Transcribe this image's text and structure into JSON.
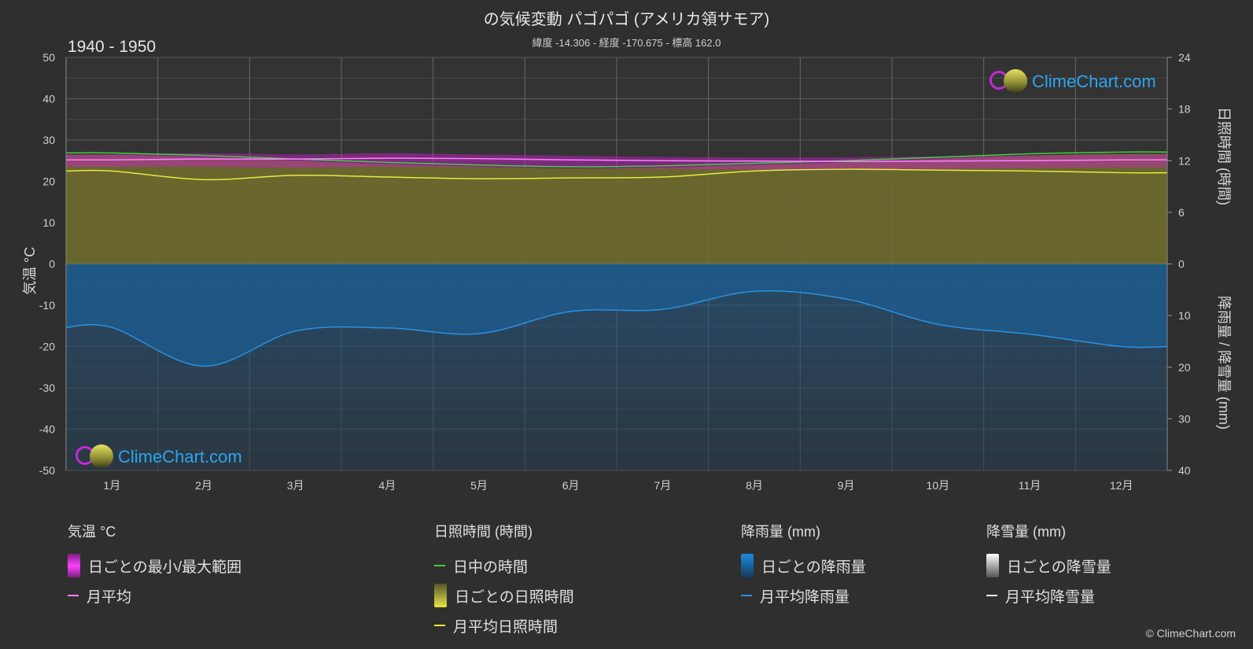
{
  "header": {
    "title": "の気候変動 パゴパゴ (アメリカ領サモア)",
    "subtitle": "緯度 -14.306 - 経度 -170.675 - 標高 162.0",
    "period": "1940 - 1950"
  },
  "logo": {
    "text": "ClimeChart.com"
  },
  "copyright": "© ClimeChart.com",
  "axes": {
    "left_title": "気温 °C",
    "right_top_title": "日照時間 (時間)",
    "right_bottom_title": "降雨量 / 降雪量 (mm)"
  },
  "legend": {
    "temperature": {
      "head": "気温 °C",
      "range": "日ごとの最小/最大範囲",
      "mean": "月平均"
    },
    "sunshine": {
      "head": "日照時間 (時間)",
      "daylight": "日中の時間",
      "daily": "日ごとの日照時間",
      "mean": "月平均日照時間"
    },
    "rain": {
      "head": "降雨量 (mm)",
      "daily": "日ごとの降雨量",
      "mean": "月平均降雨量"
    },
    "snow": {
      "head": "降雪量 (mm)",
      "daily": "日ごとの降雪量",
      "mean": "月平均降雪量"
    }
  },
  "colors": {
    "background": "#2f2f2f",
    "temp_range": "#d020d0",
    "temp_mean": "#ff80ff",
    "daylight": "#40d040",
    "sunshine_fill": "#8a8a32",
    "sunshine_mean": "#e8e840",
    "rain_fill": "#1a5a8a",
    "rain_mean": "#2a90e0",
    "snow_mean": "#ffffff"
  },
  "chart_data": {
    "type": "area",
    "months": [
      "1月",
      "2月",
      "3月",
      "4月",
      "5月",
      "6月",
      "7月",
      "8月",
      "9月",
      "10月",
      "11月",
      "12月"
    ],
    "temp_axis": {
      "ylim": [
        -50,
        50
      ],
      "ticks": [
        50,
        40,
        30,
        20,
        10,
        0,
        -10,
        -20,
        -30,
        -40,
        -50
      ]
    },
    "sunshine_axis": {
      "ylim": [
        0,
        24
      ],
      "ticks": [
        24,
        18,
        12,
        6,
        0
      ]
    },
    "precip_axis": {
      "ylim": [
        0,
        40
      ],
      "ticks": [
        0,
        10,
        20,
        30,
        40
      ]
    },
    "series": [
      {
        "name": "日中の時間",
        "axis": "sunshine_hours",
        "values": [
          12.9,
          12.6,
          12.2,
          11.8,
          11.5,
          11.3,
          11.4,
          11.7,
          12.0,
          12.4,
          12.8,
          13.0
        ]
      },
      {
        "name": "月平均",
        "axis": "temp_c",
        "values": [
          25.2,
          25.4,
          25.4,
          25.6,
          25.5,
          25.2,
          25.0,
          24.9,
          24.8,
          24.9,
          25.0,
          25.2
        ]
      },
      {
        "name": "日ごとの最小/最大範囲",
        "axis": "temp_c",
        "min": [
          23.5,
          23.5,
          23.3,
          23.5,
          23.4,
          23.2,
          23.0,
          22.9,
          22.9,
          23.0,
          23.2,
          23.4
        ],
        "max": [
          26.5,
          26.8,
          26.5,
          26.8,
          26.5,
          26.2,
          25.9,
          25.8,
          25.8,
          26.0,
          26.3,
          26.5
        ]
      },
      {
        "name": "月平均日照時間",
        "axis": "sunshine_hours",
        "values": [
          10.8,
          9.8,
          10.3,
          10.1,
          9.9,
          10.0,
          10.1,
          10.8,
          11.0,
          10.9,
          10.8,
          10.6
        ]
      },
      {
        "name": "月平均降雨量",
        "axis": "precip_mm",
        "values": [
          12.3,
          19.8,
          13.0,
          12.4,
          13.5,
          9.2,
          8.8,
          5.3,
          6.8,
          11.7,
          13.6,
          16.0
        ]
      }
    ]
  }
}
